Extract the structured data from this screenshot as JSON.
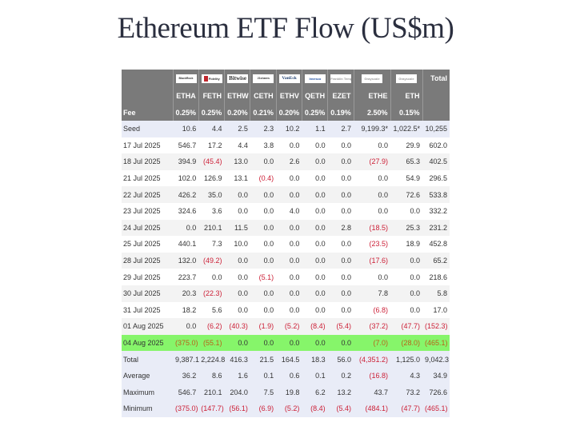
{
  "title": "Ethereum ETF Flow (US$m)",
  "columns": [
    {
      "issuer_logo": "BlackRock",
      "logo_class": "",
      "ticker": "ETHA",
      "fee": "0.25%"
    },
    {
      "issuer_logo": "Fidelity",
      "logo_class": "fidelity",
      "ticker": "FETH",
      "fee": "0.25%"
    },
    {
      "issuer_logo": "Bitwise",
      "logo_class": "bitwise",
      "ticker": "ETHW",
      "fee": "0.20%"
    },
    {
      "issuer_logo": "21shares",
      "logo_class": "",
      "ticker": "CETH",
      "fee": "0.21%"
    },
    {
      "issuer_logo": "VanEck",
      "logo_class": "vaneck",
      "ticker": "ETHV",
      "fee": "0.20%"
    },
    {
      "issuer_logo": "Invesco",
      "logo_class": "invesco",
      "ticker": "QETH",
      "fee": "0.25%"
    },
    {
      "issuer_logo": "Franklin Templeton",
      "logo_class": "gray",
      "ticker": "EZET",
      "fee": "0.19%"
    },
    {
      "issuer_logo": "Grayscale",
      "logo_class": "gray",
      "ticker": "ETHE",
      "fee": "2.50%"
    },
    {
      "issuer_logo": "Grayscale",
      "logo_class": "gray",
      "ticker": "ETH",
      "fee": "0.15%"
    }
  ],
  "header": {
    "total_label": "Total",
    "fee_label": "Fee"
  },
  "rows": [
    {
      "label": "Seed",
      "type": "seed",
      "values": [
        "10.6",
        "4.4",
        "2.5",
        "2.3",
        "10.2",
        "1.1",
        "2.7",
        "9,199.3*",
        "1,022.5*",
        "10,255"
      ]
    },
    {
      "label": "17 Jul 2025",
      "type": "row-odd",
      "values": [
        "546.7",
        "17.2",
        "4.4",
        "3.8",
        "0.0",
        "0.0",
        "0.0",
        "0.0",
        "29.9",
        "602.0"
      ]
    },
    {
      "label": "18 Jul 2025",
      "type": "row-even",
      "values": [
        "394.9",
        "(45.4)",
        "13.0",
        "0.0",
        "2.6",
        "0.0",
        "0.0",
        "(27.9)",
        "65.3",
        "402.5"
      ]
    },
    {
      "label": "21 Jul 2025",
      "type": "row-odd",
      "values": [
        "102.0",
        "126.9",
        "13.1",
        "(0.4)",
        "0.0",
        "0.0",
        "0.0",
        "0.0",
        "54.9",
        "296.5"
      ]
    },
    {
      "label": "22 Jul 2025",
      "type": "row-even",
      "values": [
        "426.2",
        "35.0",
        "0.0",
        "0.0",
        "0.0",
        "0.0",
        "0.0",
        "0.0",
        "72.6",
        "533.8"
      ]
    },
    {
      "label": "23 Jul 2025",
      "type": "row-odd",
      "values": [
        "324.6",
        "3.6",
        "0.0",
        "0.0",
        "4.0",
        "0.0",
        "0.0",
        "0.0",
        "0.0",
        "332.2"
      ]
    },
    {
      "label": "24 Jul 2025",
      "type": "row-even",
      "values": [
        "0.0",
        "210.1",
        "11.5",
        "0.0",
        "0.0",
        "0.0",
        "2.8",
        "(18.5)",
        "25.3",
        "231.2"
      ]
    },
    {
      "label": "25 Jul 2025",
      "type": "row-odd",
      "values": [
        "440.1",
        "7.3",
        "10.0",
        "0.0",
        "0.0",
        "0.0",
        "0.0",
        "(23.5)",
        "18.9",
        "452.8"
      ]
    },
    {
      "label": "28 Jul 2025",
      "type": "row-even",
      "values": [
        "132.0",
        "(49.2)",
        "0.0",
        "0.0",
        "0.0",
        "0.0",
        "0.0",
        "(17.6)",
        "0.0",
        "65.2"
      ]
    },
    {
      "label": "29 Jul 2025",
      "type": "row-odd",
      "values": [
        "223.7",
        "0.0",
        "0.0",
        "(5.1)",
        "0.0",
        "0.0",
        "0.0",
        "0.0",
        "0.0",
        "218.6"
      ]
    },
    {
      "label": "30 Jul 2025",
      "type": "row-even",
      "values": [
        "20.3",
        "(22.3)",
        "0.0",
        "0.0",
        "0.0",
        "0.0",
        "0.0",
        "7.8",
        "0.0",
        "5.8"
      ]
    },
    {
      "label": "31 Jul 2025",
      "type": "row-odd",
      "values": [
        "18.2",
        "5.6",
        "0.0",
        "0.0",
        "0.0",
        "0.0",
        "0.0",
        "(6.8)",
        "0.0",
        "17.0"
      ]
    },
    {
      "label": "01 Aug 2025",
      "type": "row-even",
      "values": [
        "0.0",
        "(6.2)",
        "(40.3)",
        "(1.9)",
        "(5.2)",
        "(8.4)",
        "(5.4)",
        "(37.2)",
        "(47.7)",
        "(152.3)"
      ]
    },
    {
      "label": "04 Aug 2025",
      "type": "highlight",
      "values": [
        "(375.0)",
        "(55.1)",
        "0.0",
        "0.0",
        "0.0",
        "0.0",
        "0.0",
        "(7.0)",
        "(28.0)",
        "(465.1)"
      ]
    },
    {
      "label": "Total",
      "type": "stat",
      "values": [
        "9,387.1",
        "2,224.8",
        "416.3",
        "21.5",
        "164.5",
        "18.3",
        "56.0",
        "(4,351.2)",
        "1,125.0",
        "9,042.3"
      ]
    },
    {
      "label": "Average",
      "type": "stat",
      "values": [
        "36.2",
        "8.6",
        "1.6",
        "0.1",
        "0.6",
        "0.1",
        "0.2",
        "(16.8)",
        "4.3",
        "34.9"
      ]
    },
    {
      "label": "Maximum",
      "type": "stat",
      "values": [
        "546.7",
        "210.1",
        "204.0",
        "7.5",
        "19.8",
        "6.2",
        "13.2",
        "43.7",
        "73.2",
        "726.6"
      ]
    },
    {
      "label": "Minimum",
      "type": "stat",
      "values": [
        "(375.0)",
        "(147.7)",
        "(56.1)",
        "(6.9)",
        "(5.2)",
        "(8.4)",
        "(5.4)",
        "(484.1)",
        "(47.7)",
        "(465.1)"
      ]
    }
  ],
  "colors": {
    "header_bg": "#7a7a7a",
    "seed_stat_bg": "#e9ecf7",
    "highlight_bg": "#86f56a",
    "negative": "#cc1f36"
  }
}
